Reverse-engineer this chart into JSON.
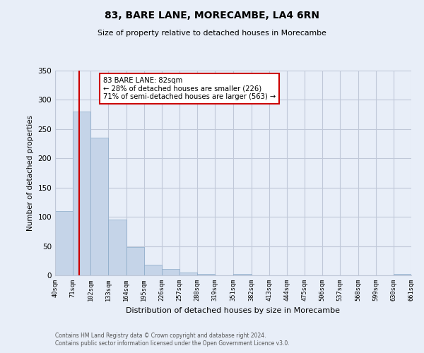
{
  "title": "83, BARE LANE, MORECAMBE, LA4 6RN",
  "subtitle": "Size of property relative to detached houses in Morecambe",
  "xlabel": "Distribution of detached houses by size in Morecambe",
  "ylabel": "Number of detached properties",
  "bar_color": "#c5d4e8",
  "bar_edge_color": "#8aaac8",
  "grid_color": "#c0c8d8",
  "background_color": "#e8eef8",
  "annotation_box_color": "#ffffff",
  "annotation_border_color": "#cc0000",
  "red_line_color": "#cc0000",
  "bins": [
    40,
    71,
    102,
    133,
    164,
    195,
    226,
    257,
    288,
    319,
    351,
    382,
    413,
    444,
    475,
    506,
    537,
    568,
    599,
    630,
    661
  ],
  "bar_heights": [
    110,
    280,
    235,
    95,
    48,
    18,
    11,
    5,
    2,
    0,
    2,
    0,
    0,
    0,
    0,
    0,
    0,
    0,
    0,
    2
  ],
  "ylim": [
    0,
    350
  ],
  "yticks": [
    0,
    50,
    100,
    150,
    200,
    250,
    300,
    350
  ],
  "red_line_x": 82,
  "annotation_text": "83 BARE LANE: 82sqm\n← 28% of detached houses are smaller (226)\n71% of semi-detached houses are larger (563) →",
  "footer_line1": "Contains HM Land Registry data © Crown copyright and database right 2024.",
  "footer_line2": "Contains public sector information licensed under the Open Government Licence v3.0.",
  "tick_labels": [
    "40sqm",
    "71sqm",
    "102sqm",
    "133sqm",
    "164sqm",
    "195sqm",
    "226sqm",
    "257sqm",
    "288sqm",
    "319sqm",
    "351sqm",
    "382sqm",
    "413sqm",
    "444sqm",
    "475sqm",
    "506sqm",
    "537sqm",
    "568sqm",
    "599sqm",
    "630sqm",
    "661sqm"
  ]
}
